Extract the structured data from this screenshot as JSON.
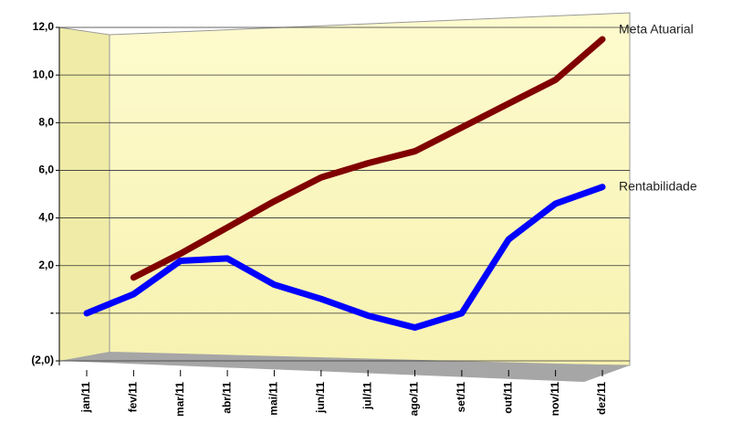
{
  "chart_data": {
    "type": "line",
    "categories": [
      "jan/11",
      "fev/11",
      "mar/11",
      "abr/11",
      "mai/11",
      "jun/11",
      "jul/11",
      "ago/11",
      "set/11",
      "out/11",
      "nov/11",
      "dez/11"
    ],
    "series": [
      {
        "name": "Meta Atuarial",
        "color": "#800000",
        "values": [
          null,
          1.5,
          2.5,
          3.6,
          4.7,
          5.7,
          6.3,
          6.8,
          7.8,
          8.8,
          9.8,
          11.5
        ]
      },
      {
        "name": "Rentabilidade",
        "color": "#0000ff",
        "values": [
          0.0,
          0.8,
          2.2,
          2.3,
          1.2,
          0.6,
          -0.1,
          -0.6,
          0.0,
          3.1,
          4.6,
          5.3
        ]
      }
    ],
    "ylim": [
      -2,
      12
    ],
    "yticks": [
      {
        "value": -2,
        "label": "(2,0)"
      },
      {
        "value": 0,
        "label": "-"
      },
      {
        "value": 2,
        "label": "2,0"
      },
      {
        "value": 4,
        "label": "4,0"
      },
      {
        "value": 6,
        "label": "6,0"
      },
      {
        "value": 8,
        "label": "8,0"
      },
      {
        "value": 10,
        "label": "10,0"
      },
      {
        "value": 12,
        "label": "12,0"
      }
    ],
    "grid": true
  }
}
